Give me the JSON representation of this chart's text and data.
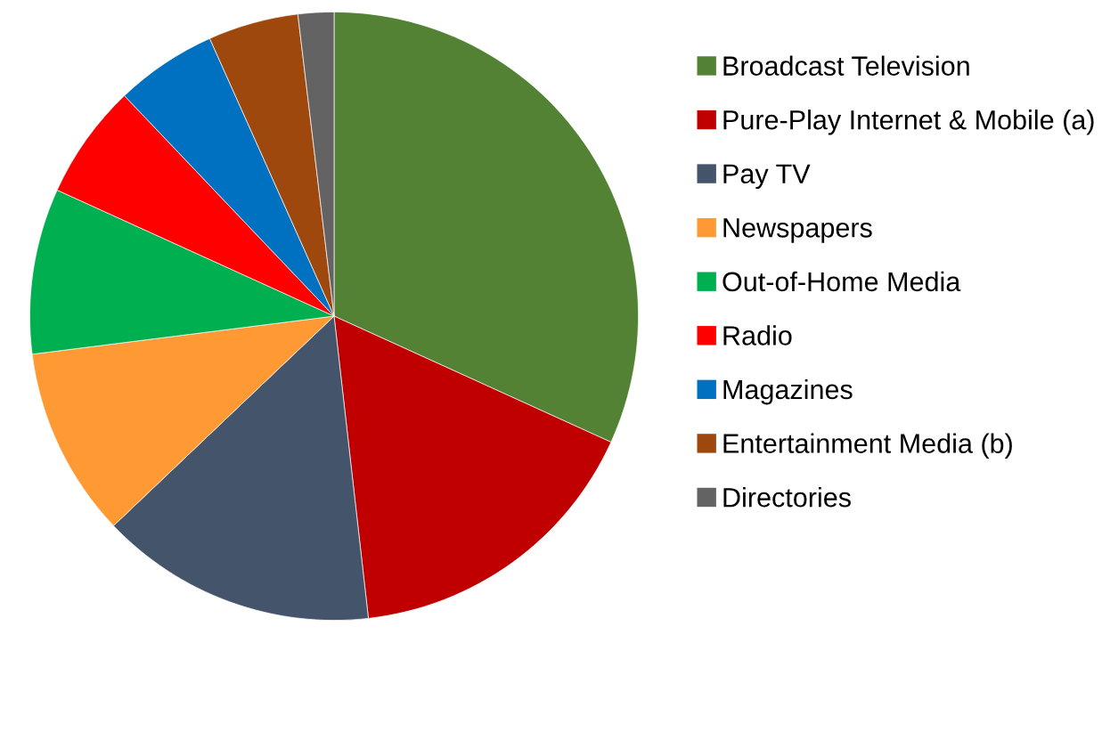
{
  "chart_data": {
    "type": "pie",
    "categories": [
      "Broadcast Television",
      "Pure-Play Internet & Mobile (a)",
      "Pay TV",
      "Newspapers",
      "Out-of-Home Media",
      "Radio",
      "Magazines",
      "Entertainment Media (b)",
      "Directories"
    ],
    "values": [
      31.8,
      16.4,
      14.7,
      10.1,
      8.8,
      6.1,
      5.4,
      4.8,
      1.9
    ],
    "colors": [
      "#548235",
      "#c00000",
      "#44546a",
      "#ff9933",
      "#00b050",
      "#ff0000",
      "#0070c0",
      "#9e480e",
      "#636363"
    ],
    "legend": "right"
  }
}
